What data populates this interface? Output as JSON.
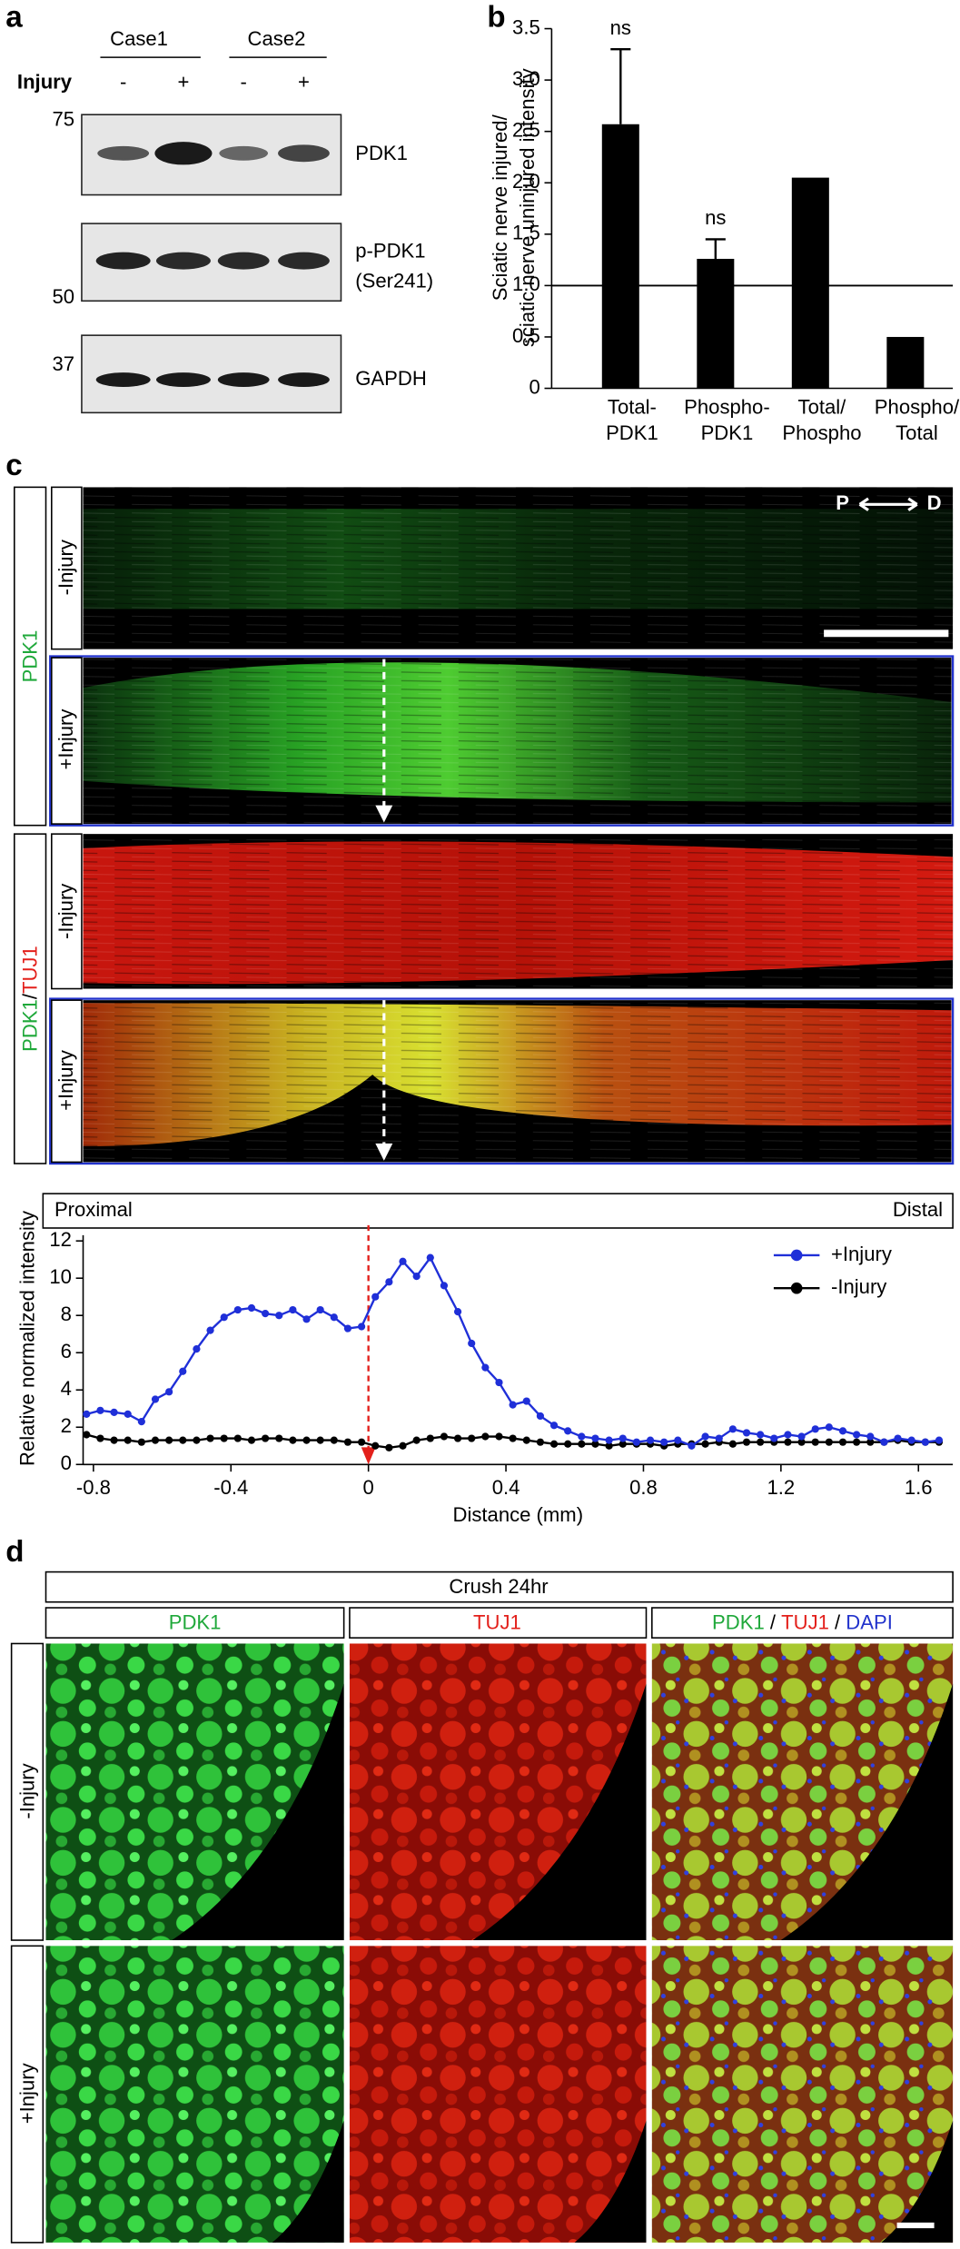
{
  "panel_labels": [
    "a",
    "b",
    "c",
    "d"
  ],
  "blot": {
    "cases": [
      "Case1",
      "Case2"
    ],
    "injury_label": "Injury",
    "lanes": [
      "-",
      "+",
      "-",
      "+"
    ],
    "markers": [
      "75",
      "50",
      "37"
    ],
    "rows": [
      [
        "PDK1"
      ],
      [
        "p-PDK1",
        "(Ser241)"
      ],
      [
        "GAPDH"
      ]
    ]
  },
  "chart_data": [
    {
      "type": "bar",
      "ylabel": [
        "Sciatic nerve injured/",
        "sciatic nerve uninjured intensity"
      ],
      "categories": [
        [
          "Total-",
          "PDK1"
        ],
        [
          "Phospho-",
          "PDK1"
        ],
        [
          "Total/",
          "Phospho"
        ],
        [
          "Phospho/",
          "Total"
        ]
      ],
      "values": [
        2.57,
        1.26,
        2.05,
        0.5
      ],
      "error": [
        0.73,
        0.19,
        null,
        null
      ],
      "annotations": [
        "ns",
        "ns",
        null,
        null
      ],
      "color": "#000000",
      "ylim": [
        0,
        3.5
      ],
      "yticks": [
        0,
        0.5,
        {
          "value": 1,
          "label": "1.0"
        },
        1.5,
        {
          "value": 2,
          "label": "2.0"
        },
        2.5,
        {
          "value": 3,
          "label": "3.0"
        },
        3.5
      ],
      "hline": 1
    },
    {
      "type": "line",
      "region_labels": [
        "Proximal",
        "Distal"
      ],
      "xlabel": "Distance (mm)",
      "ylabel": "Relative normalized intensity",
      "x": [
        -0.82,
        -0.78,
        -0.74,
        -0.7,
        -0.66,
        -0.62,
        -0.58,
        -0.54,
        -0.5,
        -0.46,
        -0.42,
        -0.38,
        -0.34,
        -0.3,
        -0.26,
        -0.22,
        -0.18,
        -0.14,
        -0.1,
        -0.06,
        -0.02,
        0.02,
        0.06,
        0.1,
        0.14,
        0.18,
        0.22,
        0.26,
        0.3,
        0.34,
        0.38,
        0.42,
        0.46,
        0.5,
        0.54,
        0.58,
        0.62,
        0.66,
        0.7,
        0.74,
        0.78,
        0.82,
        0.86,
        0.9,
        0.94,
        0.98,
        1.02,
        1.06,
        1.1,
        1.14,
        1.18,
        1.22,
        1.26,
        1.3,
        1.34,
        1.38,
        1.42,
        1.46,
        1.5,
        1.54,
        1.58,
        1.62,
        1.66
      ],
      "series": [
        {
          "name": "+Injury",
          "color": "#1f2fd8",
          "values": [
            2.7,
            2.9,
            2.8,
            2.7,
            2.3,
            3.5,
            3.9,
            5.0,
            6.2,
            7.2,
            7.9,
            8.3,
            8.4,
            8.1,
            8.0,
            8.3,
            7.8,
            8.3,
            7.9,
            7.3,
            7.4,
            9.0,
            9.8,
            10.9,
            10.1,
            11.1,
            9.6,
            8.2,
            6.5,
            5.2,
            4.4,
            3.2,
            3.4,
            2.6,
            2.1,
            1.8,
            1.5,
            1.4,
            1.3,
            1.4,
            1.2,
            1.3,
            1.2,
            1.3,
            1.0,
            1.5,
            1.4,
            1.9,
            1.7,
            1.6,
            1.4,
            1.6,
            1.5,
            1.9,
            2.0,
            1.8,
            1.6,
            1.5,
            1.2,
            1.4,
            1.3,
            1.2,
            1.3
          ]
        },
        {
          "name": "-Injury",
          "color": "#000000",
          "values": [
            1.6,
            1.4,
            1.3,
            1.3,
            1.2,
            1.3,
            1.3,
            1.3,
            1.3,
            1.4,
            1.4,
            1.4,
            1.3,
            1.4,
            1.4,
            1.3,
            1.3,
            1.3,
            1.3,
            1.2,
            1.2,
            1.0,
            0.9,
            1.0,
            1.3,
            1.4,
            1.5,
            1.4,
            1.4,
            1.5,
            1.5,
            1.4,
            1.3,
            1.2,
            1.1,
            1.1,
            1.1,
            1.1,
            1.0,
            1.1,
            1.1,
            1.1,
            1.0,
            1.1,
            1.1,
            1.1,
            1.2,
            1.1,
            1.2,
            1.2,
            1.2,
            1.2,
            1.2,
            1.2,
            1.2,
            1.2,
            1.2,
            1.2,
            1.2,
            1.3,
            1.2,
            1.2,
            1.2
          ]
        }
      ],
      "xlim": [
        -0.83,
        1.7
      ],
      "xticks": [
        -0.8,
        -0.4,
        0,
        0.4,
        0.8,
        1.2,
        1.6
      ],
      "ylim": [
        0,
        12
      ],
      "yticks": [
        0,
        2,
        4,
        6,
        8,
        10,
        12
      ],
      "vline": {
        "x": 0,
        "color": "#e3201b"
      },
      "legend": "top right"
    }
  ],
  "micrograph_c": {
    "direction": [
      "P",
      "D"
    ],
    "groups": [
      [
        {
          "text": "PDK1",
          "color": "#1fa83a"
        }
      ],
      [
        {
          "text": "PDK1",
          "color": "#1fa83a"
        },
        {
          "text": "/",
          "color": "#000000"
        },
        {
          "text": "TUJ1",
          "color": "#e3201b"
        }
      ]
    ],
    "rows": [
      "-Injury",
      "+Injury"
    ]
  },
  "micrograph_d": {
    "title": "Crush 24hr",
    "columns": [
      [
        {
          "text": "PDK1",
          "color": "#1fa83a"
        }
      ],
      [
        {
          "text": "TUJ1",
          "color": "#e3201b"
        }
      ],
      [
        {
          "text": "PDK1",
          "color": "#1fa83a"
        },
        {
          "text": " / ",
          "color": "#000000"
        },
        {
          "text": "TUJ1",
          "color": "#e3201b"
        },
        {
          "text": " / ",
          "color": "#000000"
        },
        {
          "text": "DAPI",
          "color": "#2233cc"
        }
      ]
    ],
    "rows": [
      "-Injury",
      "+Injury"
    ]
  }
}
